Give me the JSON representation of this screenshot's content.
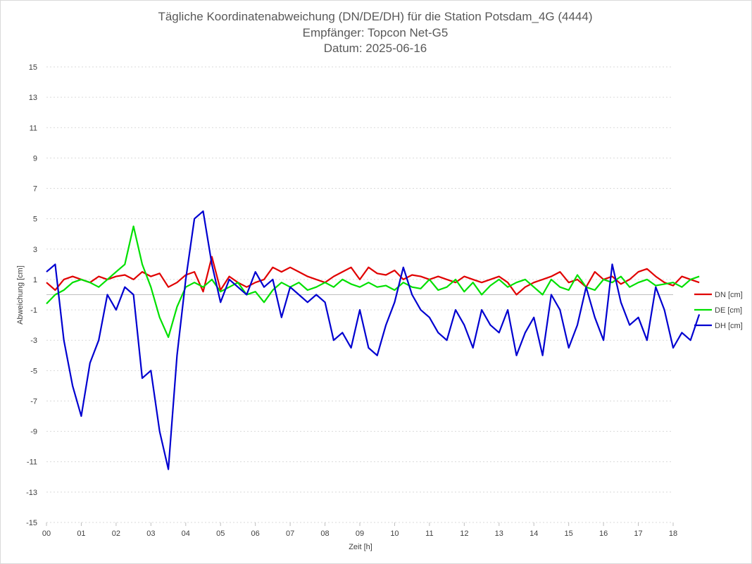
{
  "chart_data": {
    "type": "line",
    "title_lines": [
      "Tägliche Koordinatenabweichung (DN/DE/DH) für die Station Potsdam_4G (4444)",
      "Empfänger: Topcon Net-G5",
      "Datum: 2025-06-16"
    ],
    "xlabel": "Zeit [h]",
    "ylabel": "Abweichung [cm]",
    "xlim": [
      0,
      18
    ],
    "ylim": [
      -15,
      15
    ],
    "x_ticks": [
      "00",
      "01",
      "02",
      "03",
      "04",
      "05",
      "06",
      "07",
      "08",
      "09",
      "10",
      "11",
      "12",
      "13",
      "14",
      "15",
      "16",
      "17",
      "18"
    ],
    "y_ticks": [
      15,
      13,
      11,
      9,
      7,
      5,
      3,
      1,
      -1,
      -3,
      -5,
      -7,
      -9,
      -11,
      -13,
      -15
    ],
    "grid": "horizontal-dotted",
    "legend_position": "right",
    "x_step_hours": 0.25,
    "series": [
      {
        "name": "DN [cm]",
        "color": "#e00000",
        "values": [
          0.8,
          0.3,
          1.0,
          1.2,
          1.0,
          0.8,
          1.2,
          1.0,
          1.2,
          1.3,
          1.0,
          1.5,
          1.2,
          1.4,
          0.5,
          0.8,
          1.3,
          1.5,
          0.2,
          2.5,
          0.3,
          1.2,
          0.8,
          0.5,
          0.8,
          1.0,
          1.8,
          1.5,
          1.8,
          1.5,
          1.2,
          1.0,
          0.8,
          1.2,
          1.5,
          1.8,
          1.0,
          1.8,
          1.4,
          1.3,
          1.6,
          1.0,
          1.3,
          1.2,
          1.0,
          1.2,
          1.0,
          0.8,
          1.2,
          1.0,
          0.8,
          1.0,
          1.2,
          0.8,
          0.0,
          0.5,
          0.8,
          1.0,
          1.2,
          1.5,
          0.8,
          1.0,
          0.5,
          1.5,
          1.0,
          1.2,
          0.7,
          1.0,
          1.5,
          1.7,
          1.2,
          0.8,
          0.6,
          1.2,
          1.0,
          0.8
        ]
      },
      {
        "name": "DE [cm]",
        "color": "#00e000",
        "values": [
          -0.6,
          0.0,
          0.3,
          0.8,
          1.0,
          0.8,
          0.5,
          1.0,
          1.5,
          2.0,
          4.5,
          2.0,
          0.5,
          -1.5,
          -2.8,
          -0.8,
          0.5,
          0.8,
          0.5,
          1.0,
          0.2,
          0.5,
          0.8,
          0.0,
          0.2,
          -0.5,
          0.3,
          0.8,
          0.5,
          0.8,
          0.3,
          0.5,
          0.8,
          0.5,
          1.0,
          0.7,
          0.5,
          0.8,
          0.5,
          0.6,
          0.3,
          0.8,
          0.5,
          0.4,
          1.0,
          0.3,
          0.5,
          1.0,
          0.2,
          0.8,
          0.0,
          0.6,
          1.0,
          0.5,
          0.8,
          1.0,
          0.5,
          0.0,
          1.0,
          0.5,
          0.3,
          1.3,
          0.5,
          0.3,
          1.0,
          0.8,
          1.2,
          0.5,
          0.8,
          1.0,
          0.6,
          0.7,
          0.8,
          0.5,
          1.0,
          1.2
        ]
      },
      {
        "name": "DH [cm]",
        "color": "#0000d0",
        "values": [
          1.5,
          2.0,
          -3.0,
          -6.0,
          -8.0,
          -4.5,
          -3.0,
          0.0,
          -1.0,
          0.5,
          0.0,
          -5.5,
          -5.0,
          -9.0,
          -11.5,
          -4.0,
          1.0,
          5.0,
          5.5,
          2.0,
          -0.5,
          1.0,
          0.5,
          0.0,
          1.5,
          0.5,
          1.0,
          -1.5,
          0.5,
          0.0,
          -0.5,
          0.0,
          -0.5,
          -3.0,
          -2.5,
          -3.5,
          -1.0,
          -3.5,
          -4.0,
          -2.0,
          -0.5,
          1.8,
          0.0,
          -1.0,
          -1.5,
          -2.5,
          -3.0,
          -1.0,
          -2.0,
          -3.5,
          -1.0,
          -2.0,
          -2.5,
          -1.0,
          -4.0,
          -2.5,
          -1.5,
          -4.0,
          0.0,
          -1.0,
          -3.5,
          -2.0,
          0.5,
          -1.5,
          -3.0,
          2.0,
          -0.5,
          -2.0,
          -1.5,
          -3.0,
          0.5,
          -1.0,
          -3.5,
          -2.5,
          -3.0,
          -1.3
        ]
      }
    ]
  }
}
